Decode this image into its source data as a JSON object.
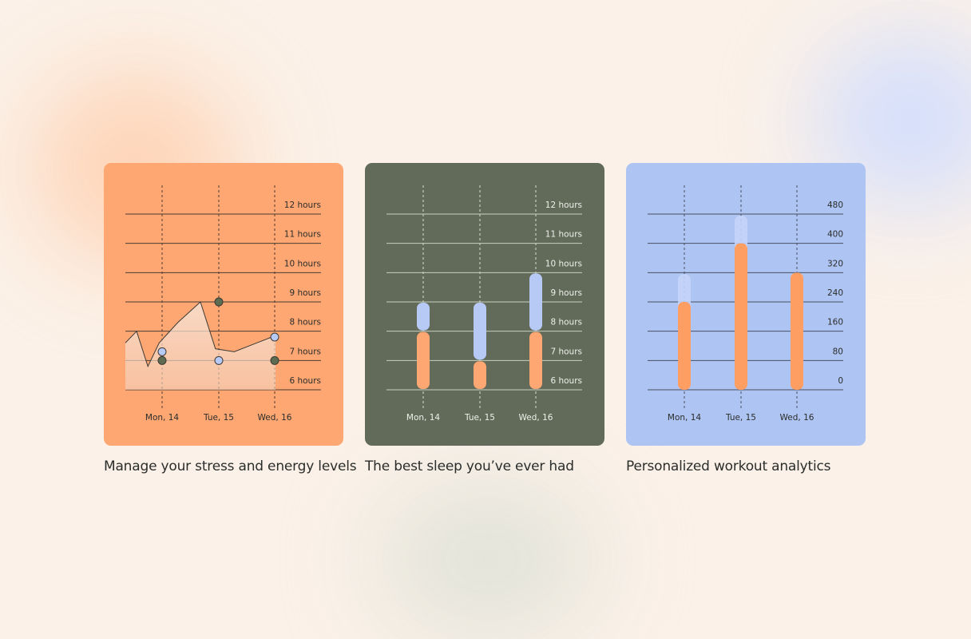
{
  "colors": {
    "page_bg": "#fbf1e8",
    "orange": "#fea772",
    "orange_bar": "#ff9e63",
    "olive": "#626b59",
    "blue_card": "#aec4f2",
    "blue_soft": "#b7c9f5",
    "dark_point": "#5d6b50",
    "text": "#2b2d2b"
  },
  "cards": [
    {
      "caption": "Manage your stress and energy levels"
    },
    {
      "caption": "The best sleep you’ve ever had"
    },
    {
      "caption": "Personalized workout analytics"
    }
  ],
  "chart_data": [
    {
      "type": "line",
      "categories": [
        "Mon, 14",
        "Tue, 15",
        "Wed, 16"
      ],
      "y_ticks": [
        "6 hours",
        "7 hours",
        "8 hours",
        "9 hours",
        "10 hours",
        "11 hours",
        "12 hours"
      ],
      "ylim": [
        6,
        12
      ],
      "series": [
        {
          "values": [
            7.3,
            7.0,
            7.8
          ]
        },
        {
          "values": [
            7.0,
            9.0,
            7.0
          ]
        }
      ],
      "background_area": [
        [
          0,
          7.6
        ],
        [
          0.3,
          8.0
        ],
        [
          0.6,
          6.8
        ],
        [
          0.9,
          7.6
        ],
        [
          1.4,
          8.3
        ],
        [
          2.0,
          9.0
        ],
        [
          2.4,
          7.4
        ],
        [
          2.9,
          7.3
        ],
        [
          3.5,
          7.6
        ],
        [
          3.9,
          7.8
        ],
        [
          4.0,
          7.8
        ]
      ],
      "grid": true
    },
    {
      "type": "bar",
      "stacked": true,
      "categories": [
        "Mon, 14",
        "Tue, 15",
        "Wed, 16"
      ],
      "y_ticks": [
        "6 hours",
        "7 hours",
        "8 hours",
        "9 hours",
        "10 hours",
        "11 hours",
        "12 hours"
      ],
      "ylim": [
        6,
        12
      ],
      "series": [
        {
          "color": "#fea772",
          "values": [
            [
              6,
              8
            ],
            [
              6,
              7
            ],
            [
              6,
              8
            ]
          ]
        },
        {
          "color": "#b7c9f5",
          "values": [
            [
              8,
              9
            ],
            [
              7,
              9
            ],
            [
              8,
              10
            ]
          ]
        }
      ],
      "grid": true
    },
    {
      "type": "bar",
      "categories": [
        "Mon, 14",
        "Tue, 15",
        "Wed, 16"
      ],
      "y_ticks": [
        "0",
        "80",
        "160",
        "240",
        "320",
        "400",
        "480"
      ],
      "ylim": [
        0,
        480
      ],
      "series": [
        {
          "color": "#ff9e63",
          "values": [
            240,
            400,
            320
          ]
        },
        {
          "color": "#c4d4f8",
          "values": [
            320,
            480,
            0
          ]
        }
      ],
      "grid": true
    }
  ]
}
